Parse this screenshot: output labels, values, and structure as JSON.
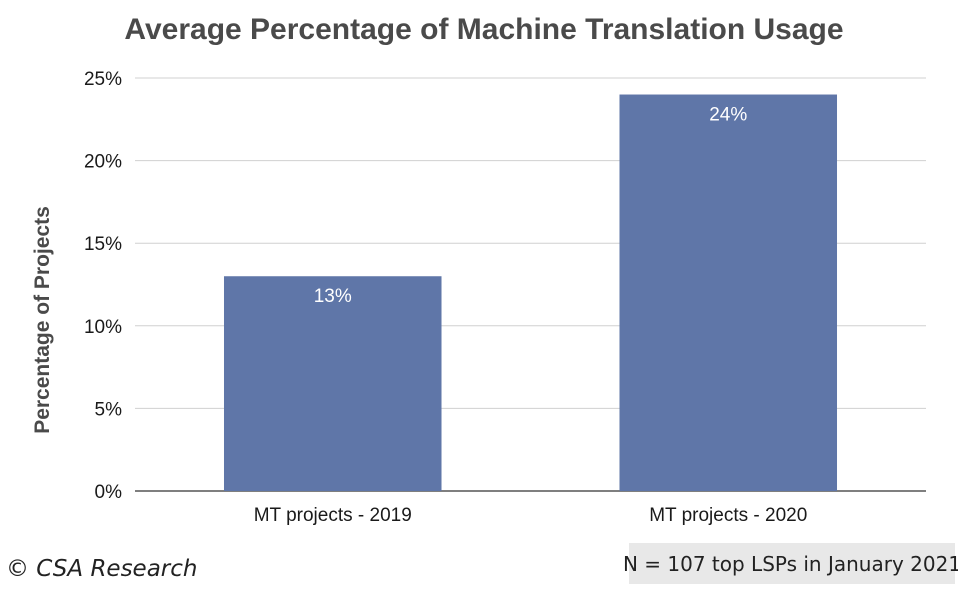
{
  "chart_data": {
    "type": "bar",
    "title": "Average Percentage of Machine Translation Usage",
    "ylabel": "Percentage of Projects",
    "xlabel": "",
    "categories": [
      "MT projects - 2019",
      "MT projects - 2020"
    ],
    "values": [
      13,
      24
    ],
    "data_labels": [
      "13%",
      "24%"
    ],
    "ylim": [
      0,
      25
    ],
    "yticks": [
      0,
      5,
      10,
      15,
      20,
      25
    ],
    "ytick_labels": [
      "0%",
      "5%",
      "10%",
      "15%",
      "20%",
      "25%"
    ],
    "grid": true,
    "legend": "none",
    "bar_color": "#5f76a8",
    "grid_color": "#d0d0d0"
  },
  "footer": {
    "copyright": "© CSA Research",
    "note": "N = 107 top LSPs in January 2021"
  }
}
